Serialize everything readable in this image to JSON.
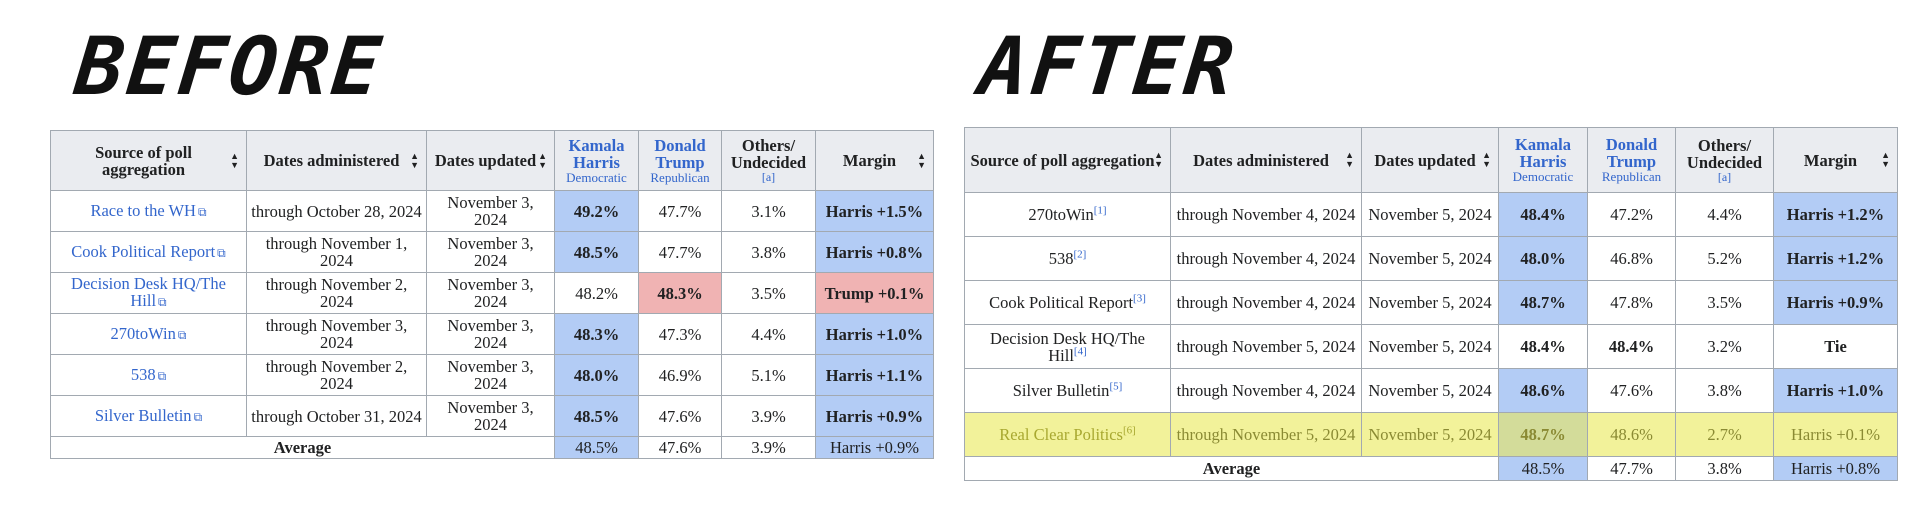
{
  "before": {
    "title": "BEFORE",
    "headers": {
      "source": "Source of poll aggregation",
      "dates_admin": "Dates administered",
      "dates_updated": "Dates updated",
      "harris": "Kamala Harris",
      "harris_party": "Democratic",
      "trump": "Donald Trump",
      "trump_party": "Republican",
      "others": "Others/ Undecided",
      "others_note": "[a]",
      "margin": "Margin"
    },
    "rows": [
      {
        "source": "Race to the WH",
        "ref": "",
        "dates_admin": "through October 28, 2024",
        "dates_updated": "November 3, 2024",
        "harris": "49.2%",
        "trump": "47.7%",
        "others": "3.1%",
        "margin": "Harris +1.5%"
      },
      {
        "source": "Cook Political Report",
        "ref": "",
        "dates_admin": "through November 1, 2024",
        "dates_updated": "November 3, 2024",
        "harris": "48.5%",
        "trump": "47.7%",
        "others": "3.8%",
        "margin": "Harris +0.8%"
      },
      {
        "source": "Decision Desk HQ/The Hill",
        "ref": "",
        "dates_admin": "through November 2, 2024",
        "dates_updated": "November 3, 2024",
        "harris": "48.2%",
        "trump": "48.3%",
        "others": "3.5%",
        "margin": "Trump +0.1%"
      },
      {
        "source": "270toWin",
        "ref": "",
        "dates_admin": "through November 3, 2024",
        "dates_updated": "November 3, 2024",
        "harris": "48.3%",
        "trump": "47.3%",
        "others": "4.4%",
        "margin": "Harris +1.0%"
      },
      {
        "source": "538",
        "ref": "",
        "dates_admin": "through November 2, 2024",
        "dates_updated": "November 3, 2024",
        "harris": "48.0%",
        "trump": "46.9%",
        "others": "5.1%",
        "margin": "Harris +1.1%"
      },
      {
        "source": "Silver Bulletin",
        "ref": "",
        "dates_admin": "through October 31, 2024",
        "dates_updated": "November 3, 2024",
        "harris": "48.5%",
        "trump": "47.6%",
        "others": "3.9%",
        "margin": "Harris +0.9%"
      }
    ],
    "average": {
      "label": "Average",
      "harris": "48.5%",
      "trump": "47.6%",
      "others": "3.9%",
      "margin": "Harris +0.9%"
    }
  },
  "after": {
    "title": "AFTER",
    "headers": {
      "source": "Source of poll aggregation",
      "dates_admin": "Dates administered",
      "dates_updated": "Dates updated",
      "harris": "Kamala Harris",
      "harris_party": "Democratic",
      "trump": "Donald Trump",
      "trump_party": "Republican",
      "others": "Others/ Undecided",
      "others_note": "[a]",
      "margin": "Margin"
    },
    "rows": [
      {
        "source": "270toWin",
        "ref": "[1]",
        "dates_admin": "through November 4, 2024",
        "dates_updated": "November 5, 2024",
        "harris": "48.4%",
        "trump": "47.2%",
        "others": "4.4%",
        "margin": "Harris +1.2%"
      },
      {
        "source": "538",
        "ref": "[2]",
        "dates_admin": "through November 4, 2024",
        "dates_updated": "November 5, 2024",
        "harris": "48.0%",
        "trump": "46.8%",
        "others": "5.2%",
        "margin": "Harris +1.2%"
      },
      {
        "source": "Cook Political Report",
        "ref": "[3]",
        "dates_admin": "through November 4, 2024",
        "dates_updated": "November 5, 2024",
        "harris": "48.7%",
        "trump": "47.8%",
        "others": "3.5%",
        "margin": "Harris +0.9%"
      },
      {
        "source": "Decision Desk HQ/The Hill",
        "ref": "[4]",
        "dates_admin": "through November 5, 2024",
        "dates_updated": "November 5, 2024",
        "harris": "48.4%",
        "trump": "48.4%",
        "others": "3.2%",
        "margin": "Tie"
      },
      {
        "source": "Silver Bulletin",
        "ref": "[5]",
        "dates_admin": "through November 4, 2024",
        "dates_updated": "November 5, 2024",
        "harris": "48.6%",
        "trump": "47.6%",
        "others": "3.8%",
        "margin": "Harris +1.0%"
      },
      {
        "source": "Real Clear Politics",
        "ref": "[6]",
        "dates_admin": "through November 5, 2024",
        "dates_updated": "November 5, 2024",
        "harris": "48.7%",
        "trump": "48.6%",
        "others": "2.7%",
        "margin": "Harris +0.1%"
      }
    ],
    "average": {
      "label": "Average",
      "harris": "48.5%",
      "trump": "47.7%",
      "others": "3.8%",
      "margin": "Harris +0.8%"
    }
  },
  "colors": {
    "dem_shade": "#b3ccf5",
    "rep_shade": "#f0b3b3",
    "highlight": "#f2f29a",
    "link": "#3366cc",
    "header_bg": "#eaecf0",
    "border": "#a2a9b1"
  },
  "icons": {
    "sort": "sort-icon",
    "external_link": "external-link-icon"
  }
}
